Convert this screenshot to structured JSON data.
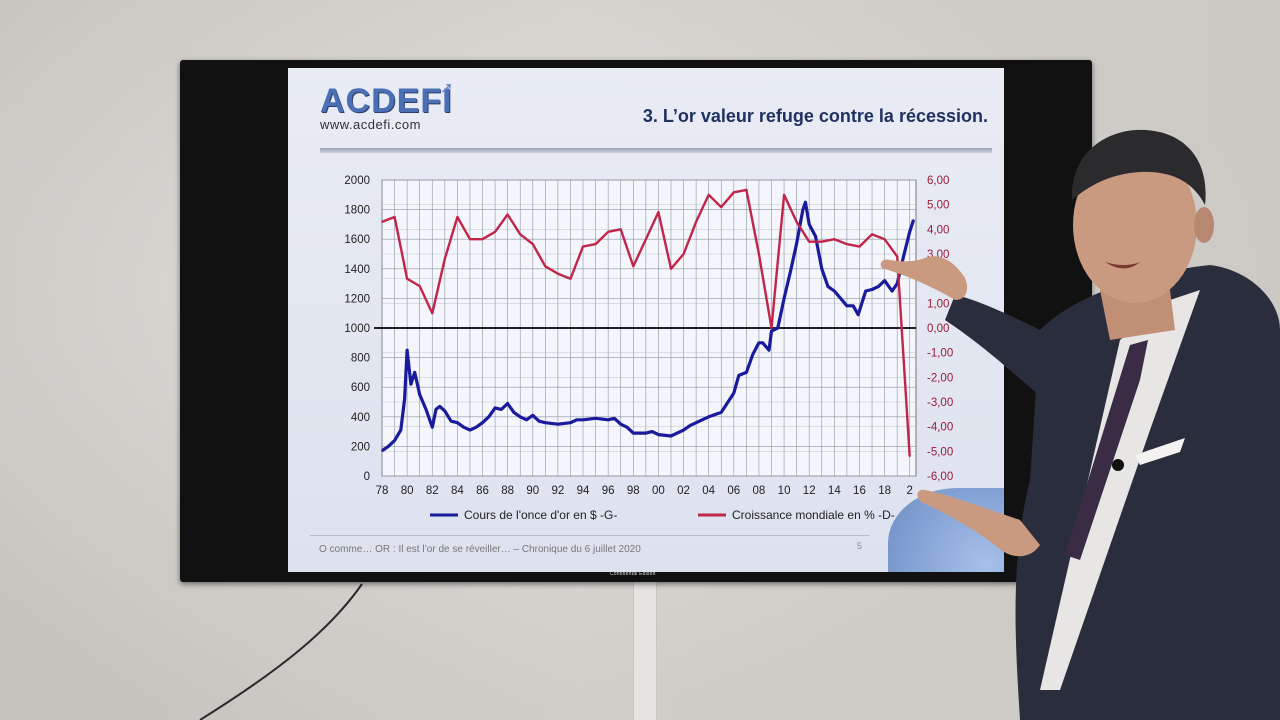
{
  "slide": {
    "logo": "ACDEFI",
    "logo_url": "www.acdefi.com",
    "title": "3. L’or valeur refuge contre la récession.",
    "footer": "O comme… OR : Il est l’or de se réveiller… – Chronique du 6 juillet 2020",
    "page": "5"
  },
  "tv": {
    "brand": "Continental Edison"
  },
  "colors": {
    "gold_series": "#1a1a9c",
    "growth_series": "#c0264a",
    "axis_left": "#222222",
    "axis_right": "#9b1b3a"
  },
  "chart_data": {
    "type": "line",
    "title": "",
    "x_tick_labels": [
      "78",
      "80",
      "82",
      "84",
      "86",
      "88",
      "90",
      "92",
      "94",
      "96",
      "98",
      "00",
      "02",
      "04",
      "06",
      "08",
      "10",
      "12",
      "14",
      "16",
      "18",
      "2"
    ],
    "y_left_ticks": [
      "0",
      "200",
      "400",
      "600",
      "800",
      "1000",
      "1200",
      "1400",
      "1600",
      "1800",
      "2000"
    ],
    "y_right_ticks": [
      "6,00",
      "5,00",
      "4,00",
      "3,00",
      "2,00",
      "1,00",
      "0,00",
      "-1,00",
      "-2,00",
      "-3,00",
      "-4,00",
      "-5,00",
      "-6,00"
    ],
    "ylim_left": [
      0,
      2000
    ],
    "ylim_right": [
      -6,
      6
    ],
    "xlim": [
      1978,
      2020.5
    ],
    "grid": true,
    "reference_line_left": 1000,
    "legend_position": "bottom",
    "series": [
      {
        "name": "Cours de l'once d'or en $ -G-",
        "axis": "left",
        "x": [
          1978,
          1978.5,
          1979,
          1979.5,
          1979.8,
          1980,
          1980.3,
          1980.6,
          1981,
          1981.5,
          1982,
          1982.3,
          1982.6,
          1983,
          1983.5,
          1984,
          1984.5,
          1985,
          1985.5,
          1986,
          1986.5,
          1987,
          1987.5,
          1988,
          1988.5,
          1989,
          1989.5,
          1990,
          1990.5,
          1991,
          1992,
          1993,
          1993.5,
          1994,
          1995,
          1996,
          1996.5,
          1997,
          1997.5,
          1998,
          1999,
          1999.5,
          2000,
          2001,
          2002,
          2002.5,
          2003,
          2004,
          2005,
          2006,
          2006.4,
          2007,
          2007.5,
          2008,
          2008.3,
          2008.8,
          2009,
          2009.5,
          2010,
          2010.5,
          2011,
          2011.5,
          2011.7,
          2012,
          2012.5,
          2013,
          2013.5,
          2014,
          2014.5,
          2015,
          2015.5,
          2015.9,
          2016.5,
          2017,
          2017.5,
          2018,
          2018.6,
          2019,
          2019.5,
          2020,
          2020.3
        ],
        "y": [
          170,
          200,
          240,
          310,
          520,
          850,
          620,
          700,
          550,
          450,
          330,
          450,
          470,
          440,
          370,
          360,
          330,
          310,
          330,
          360,
          400,
          460,
          450,
          490,
          430,
          400,
          380,
          410,
          370,
          360,
          350,
          360,
          380,
          380,
          390,
          380,
          390,
          350,
          330,
          290,
          290,
          300,
          280,
          270,
          310,
          340,
          360,
          400,
          430,
          560,
          680,
          700,
          820,
          900,
          900,
          850,
          980,
          1000,
          1200,
          1380,
          1570,
          1800,
          1850,
          1700,
          1620,
          1400,
          1280,
          1250,
          1200,
          1150,
          1150,
          1090,
          1250,
          1260,
          1280,
          1320,
          1250,
          1300,
          1480,
          1650,
          1730
        ]
      },
      {
        "name": "Croissance mondiale en % -D-",
        "axis": "right",
        "x": [
          1978,
          1979,
          1980,
          1981,
          1982,
          1983,
          1984,
          1985,
          1986,
          1987,
          1988,
          1989,
          1990,
          1991,
          1992,
          1993,
          1994,
          1995,
          1996,
          1997,
          1998,
          1999,
          2000,
          2001,
          2002,
          2003,
          2004,
          2005,
          2006,
          2007,
          2008,
          2009,
          2010,
          2011,
          2012,
          2013,
          2014,
          2015,
          2016,
          2017,
          2018,
          2019,
          2020
        ],
        "y": [
          4.3,
          4.5,
          2.0,
          1.7,
          0.6,
          2.8,
          4.5,
          3.6,
          3.6,
          3.9,
          4.6,
          3.8,
          3.4,
          2.5,
          2.2,
          2.0,
          3.3,
          3.4,
          3.9,
          4.0,
          2.5,
          3.6,
          4.7,
          2.4,
          3.0,
          4.3,
          5.4,
          4.9,
          5.5,
          5.6,
          3.0,
          0.0,
          5.4,
          4.3,
          3.5,
          3.5,
          3.6,
          3.4,
          3.3,
          3.8,
          3.6,
          2.9,
          -5.2
        ]
      }
    ]
  }
}
